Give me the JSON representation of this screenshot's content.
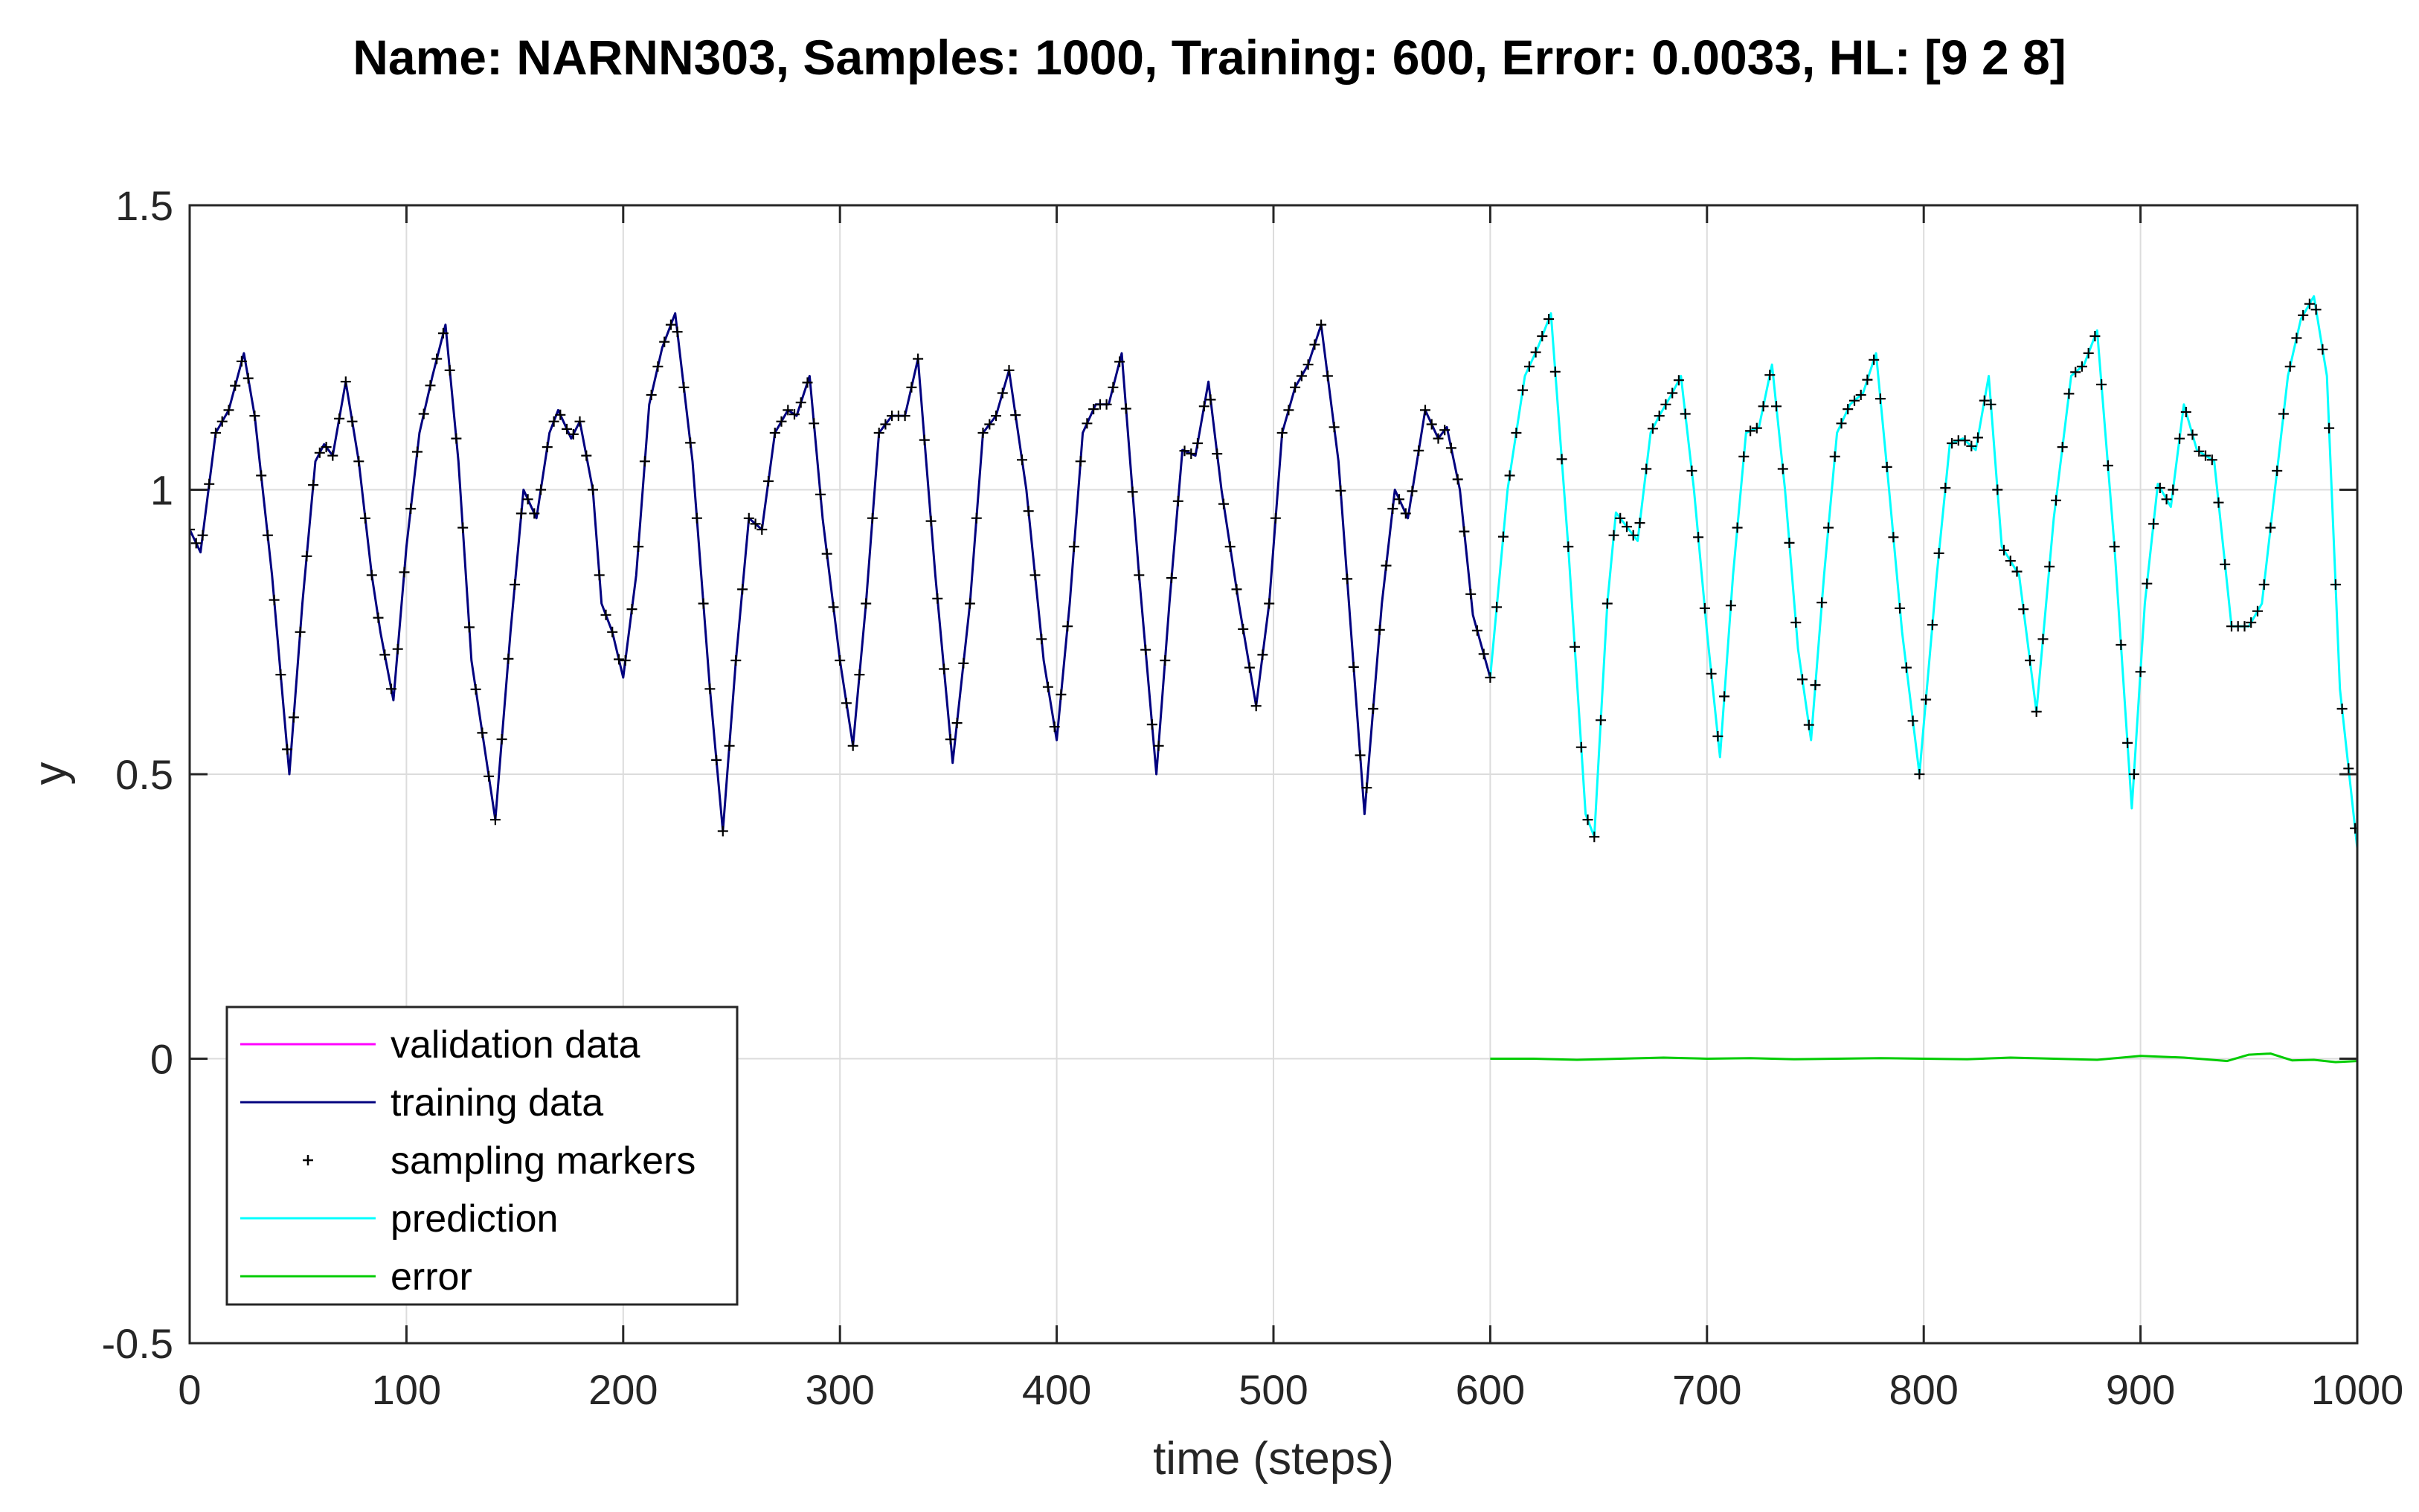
{
  "chart_data": {
    "type": "line",
    "title": "Name: NARNN303, Samples: 1000, Training: 600, Error: 0.0033, HL: [9 2 8]",
    "xlabel": "time (steps)",
    "ylabel": "y",
    "xlim": [
      0,
      1000
    ],
    "ylim": [
      -0.5,
      1.5
    ],
    "grid": true,
    "x_ticks": [
      0,
      100,
      200,
      300,
      400,
      500,
      600,
      700,
      800,
      900,
      1000
    ],
    "x_tick_labels": [
      "0",
      "100",
      "200",
      "300",
      "400",
      "500",
      "600",
      "700",
      "800",
      "900",
      "1000"
    ],
    "y_ticks": [
      -0.5,
      0,
      0.5,
      1,
      1.5
    ],
    "y_tick_labels": [
      "-0.5",
      "0",
      "0.5",
      "1",
      "1.5"
    ],
    "legend_position": "bottom-left",
    "legend": [
      {
        "label": "validation data",
        "style": "line",
        "color": "#ff00ff"
      },
      {
        "label": "training data",
        "style": "line",
        "color": "#00007f"
      },
      {
        "label": "sampling markers",
        "style": "marker",
        "color": "#000000"
      },
      {
        "label": "prediction",
        "style": "line",
        "color": "#00ffff"
      },
      {
        "label": "error",
        "style": "line",
        "color": "#00cc00"
      }
    ],
    "marker_step": 3,
    "series": [
      {
        "name": "training data",
        "color": "#00007f",
        "x": [
          0,
          5,
          12,
          18,
          25,
          30,
          38,
          46,
          52,
          58,
          62,
          66,
          72,
          78,
          84,
          88,
          94,
          100,
          106,
          112,
          118,
          124,
          130,
          141,
          148,
          154,
          160,
          166,
          170,
          176,
          180,
          186,
          190,
          195,
          200,
          206,
          212,
          218,
          224,
          232,
          240,
          246,
          252,
          258,
          264,
          270,
          276,
          280,
          286,
          292,
          300,
          306,
          312,
          318,
          324,
          330,
          336,
          344,
          352,
          360,
          366,
          372,
          378,
          386,
          394,
          400,
          406,
          412,
          418,
          424,
          430,
          438,
          446,
          452,
          458,
          464,
          470,
          476,
          484,
          492,
          498,
          504,
          510,
          516,
          522,
          530,
          542,
          550,
          556,
          562,
          570,
          576,
          580,
          586,
          592,
          600
        ],
        "y": [
          0.93,
          0.89,
          1.1,
          1.14,
          1.24,
          1.13,
          0.85,
          0.5,
          0.8,
          1.05,
          1.08,
          1.06,
          1.19,
          1.05,
          0.85,
          0.75,
          0.63,
          0.9,
          1.1,
          1.2,
          1.29,
          1.05,
          0.7,
          0.42,
          0.75,
          1.0,
          0.95,
          1.1,
          1.14,
          1.09,
          1.12,
          1.0,
          0.8,
          0.75,
          0.67,
          0.85,
          1.15,
          1.25,
          1.31,
          1.05,
          0.65,
          0.4,
          0.7,
          0.95,
          0.93,
          1.1,
          1.14,
          1.13,
          1.2,
          0.95,
          0.7,
          0.55,
          0.8,
          1.1,
          1.13,
          1.13,
          1.23,
          0.85,
          0.52,
          0.8,
          1.1,
          1.13,
          1.21,
          1.0,
          0.7,
          0.56,
          0.8,
          1.1,
          1.15,
          1.15,
          1.24,
          0.85,
          0.5,
          0.8,
          1.07,
          1.06,
          1.19,
          1.0,
          0.8,
          0.62,
          0.8,
          1.1,
          1.18,
          1.22,
          1.29,
          1.05,
          0.43,
          0.8,
          1.0,
          0.95,
          1.14,
          1.09,
          1.11,
          1.0,
          0.78,
          0.67
        ]
      },
      {
        "name": "prediction",
        "color": "#00ffff",
        "x": [
          600,
          608,
          616,
          622,
          628,
          636,
          644,
          648,
          654,
          658,
          664,
          668,
          674,
          678,
          684,
          688,
          694,
          700,
          706,
          712,
          718,
          724,
          730,
          736,
          742,
          748,
          754,
          760,
          766,
          772,
          778,
          784,
          790,
          798,
          806,
          812,
          818,
          824,
          830,
          836,
          844,
          852,
          860,
          868,
          874,
          880,
          888,
          896,
          902,
          908,
          914,
          920,
          926,
          934,
          942,
          950,
          956,
          962,
          968,
          974,
          980,
          986,
          992,
          1000
        ],
        "y": [
          0.67,
          1.0,
          1.2,
          1.25,
          1.31,
          0.9,
          0.43,
          0.39,
          0.8,
          0.96,
          0.93,
          0.91,
          1.1,
          1.13,
          1.17,
          1.2,
          1.0,
          0.75,
          0.53,
          0.85,
          1.1,
          1.11,
          1.22,
          1.0,
          0.72,
          0.56,
          0.85,
          1.1,
          1.15,
          1.17,
          1.24,
          1.0,
          0.75,
          0.5,
          0.85,
          1.08,
          1.09,
          1.07,
          1.2,
          0.9,
          0.85,
          0.61,
          0.95,
          1.2,
          1.22,
          1.28,
          0.9,
          0.44,
          0.8,
          1.01,
          0.97,
          1.15,
          1.07,
          1.05,
          0.76,
          0.76,
          0.8,
          1.0,
          1.2,
          1.3,
          1.34,
          1.2,
          0.65,
          0.37
        ]
      },
      {
        "name": "error",
        "color": "#00cc00",
        "x": [
          600,
          620,
          640,
          660,
          680,
          700,
          720,
          740,
          760,
          780,
          800,
          820,
          840,
          860,
          880,
          900,
          920,
          940,
          950,
          960,
          970,
          980,
          990,
          1000
        ],
        "y": [
          0.0,
          0.0,
          -0.002,
          0.0,
          0.002,
          0.0,
          0.001,
          -0.001,
          0.0,
          0.001,
          0.0,
          -0.001,
          0.002,
          0.0,
          -0.002,
          0.005,
          0.002,
          -0.004,
          0.007,
          0.009,
          -0.003,
          -0.002,
          -0.006,
          -0.004
        ]
      }
    ]
  }
}
